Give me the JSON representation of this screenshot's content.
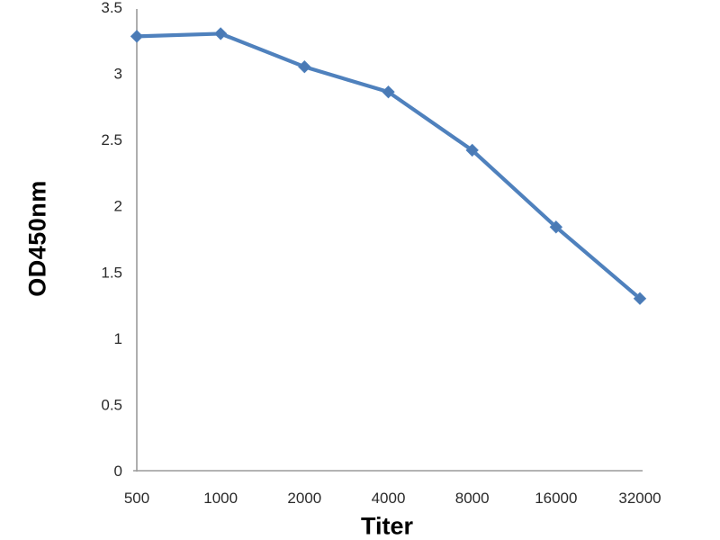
{
  "chart_data": {
    "type": "line",
    "title": "",
    "xlabel": "Titer",
    "ylabel": "OD450nm",
    "categories": [
      "500",
      "1000",
      "2000",
      "4000",
      "8000",
      "16000",
      "32000"
    ],
    "series": [
      {
        "name": "OD450nm",
        "values": [
          3.28,
          3.3,
          3.05,
          2.86,
          2.42,
          1.84,
          1.3
        ]
      }
    ],
    "ylim": [
      0,
      3.5
    ],
    "y_ticks": [
      0,
      0.5,
      1,
      1.5,
      2,
      2.5,
      3,
      3.5
    ],
    "y_tick_labels": [
      "0",
      "0.5",
      "1",
      "1.5",
      "2",
      "2.5",
      "3",
      "3.5"
    ],
    "grid": false,
    "legend_position": "none",
    "marker": "diamond",
    "colors": {
      "line": "#4f81bd",
      "marker": "#4a7ab5",
      "axis": "#9b9b9b",
      "tick_text": "#2a2a2a",
      "background": "#ffffff"
    }
  }
}
